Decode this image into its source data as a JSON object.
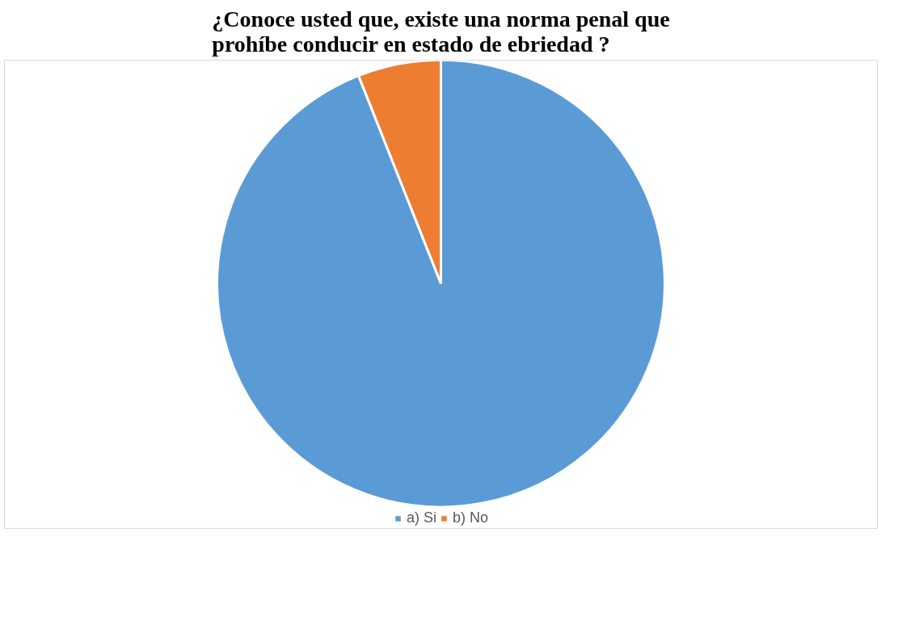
{
  "chart_data": {
    "type": "pie",
    "title": "¿Conoce usted que, existe una norma penal que\nprohíbe conducir en estado de ebriedad ?",
    "categories": [
      "a) Si",
      "b) No"
    ],
    "values": [
      94,
      6
    ],
    "colors": [
      "#5b9bd5",
      "#ed7d31"
    ],
    "legend": "bottom"
  }
}
